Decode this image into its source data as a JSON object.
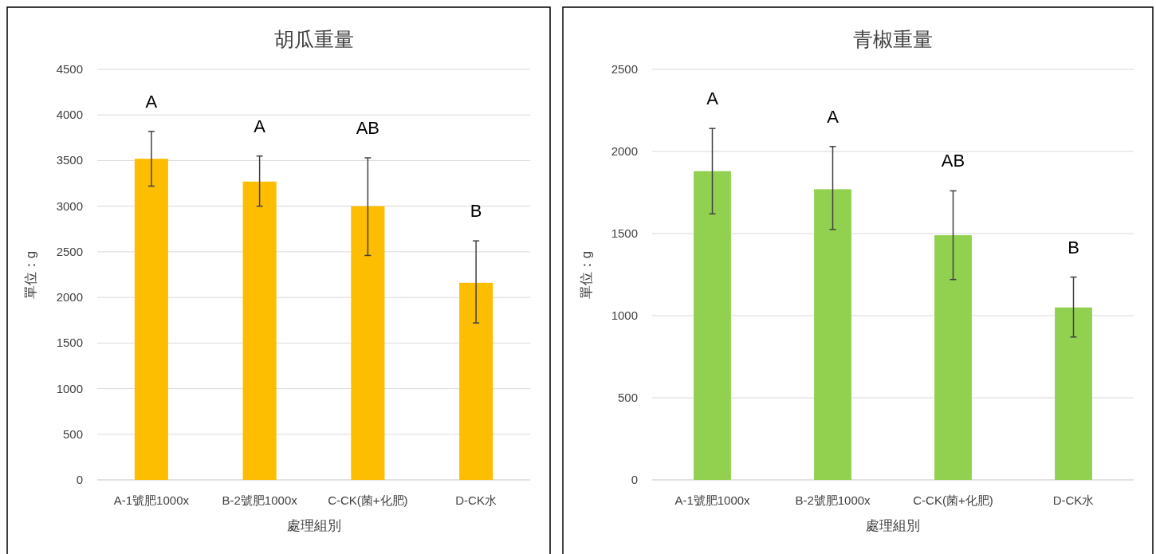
{
  "chart_data": [
    {
      "type": "bar",
      "title": "胡瓜重量",
      "xlabel": "處理組別",
      "ylabel": "單位：g",
      "color": "#fdbd00",
      "grid": "y",
      "categories": [
        "A-1號肥1000x",
        "B-2號肥1000x",
        "C-CK(菌+化肥)",
        "D-CK水"
      ],
      "values": [
        3520,
        3270,
        3000,
        2160
      ],
      "errors": [
        [
          3220,
          3820
        ],
        [
          3000,
          3550
        ],
        [
          2460,
          3530
        ],
        [
          1720,
          2620
        ]
      ],
      "ylim": [
        0,
        4500
      ],
      "yticks": [
        0,
        500,
        1000,
        1500,
        2000,
        2500,
        3000,
        3500,
        4000,
        4500
      ],
      "annotations": [
        "A",
        "A",
        "AB",
        "B"
      ]
    },
    {
      "type": "bar",
      "title": "青椒重量",
      "xlabel": "處理組別",
      "ylabel": "單位：g",
      "color": "#92d050",
      "grid": "y",
      "categories": [
        "A-1號肥1000x",
        "B-2號肥1000x",
        "C-CK(菌+化肥)",
        "D-CK水"
      ],
      "values": [
        1880,
        1770,
        1490,
        1050
      ],
      "errors": [
        [
          1620,
          2140
        ],
        [
          1525,
          2030
        ],
        [
          1220,
          1760
        ],
        [
          870,
          1235
        ]
      ],
      "ylim": [
        0,
        2500
      ],
      "yticks": [
        0,
        500,
        1000,
        1500,
        2000,
        2500
      ],
      "annotations": [
        "A",
        "A",
        "AB",
        "B"
      ]
    }
  ]
}
